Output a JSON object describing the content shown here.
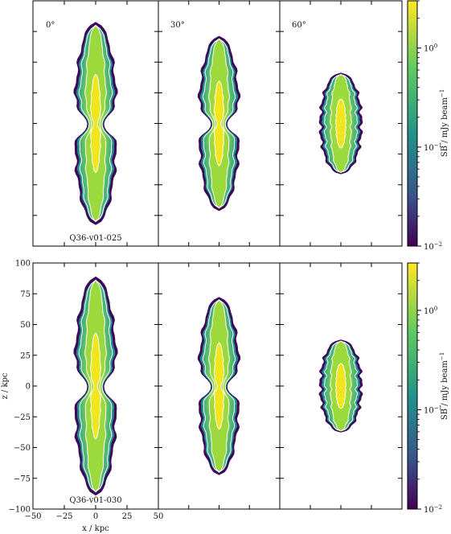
{
  "figure": {
    "colorbar_label": "SB / mJy beam",
    "colorbar_label_sup": "−1",
    "colorbar_ticks": [
      {
        "base": "10",
        "exp": "0"
      },
      {
        "base": "10",
        "exp": "−1"
      },
      {
        "base": "10",
        "exp": "−2"
      }
    ],
    "colormap": [
      "#440154",
      "#3b528b",
      "#21918c",
      "#5ec962",
      "#fde725"
    ],
    "contour_color": "#ffffff",
    "outline_color": "#3d0a57"
  },
  "chart_data": [
    {
      "type": "heatmap",
      "model": "Q36-v01-025",
      "panels": [
        {
          "angle": "0°",
          "length_kpc": 160,
          "halfwidth_kpc": 15,
          "waist": true
        },
        {
          "angle": "30°",
          "length_kpc": 138,
          "halfwidth_kpc": 15,
          "waist": true
        },
        {
          "angle": "60°",
          "length_kpc": 80,
          "halfwidth_kpc": 15,
          "waist": false
        }
      ],
      "colorbar": {
        "scale": "log",
        "range": [
          0.01,
          3
        ],
        "label": "SB / mJy beam−1"
      }
    },
    {
      "type": "heatmap",
      "model": "Q36-v01-030",
      "panels": [
        {
          "angle": "",
          "length_kpc": 172,
          "halfwidth_kpc": 15,
          "waist": true
        },
        {
          "angle": "",
          "length_kpc": 140,
          "halfwidth_kpc": 15,
          "waist": true
        },
        {
          "angle": "",
          "length_kpc": 73,
          "halfwidth_kpc": 15,
          "waist": false
        }
      ],
      "xlabel": "x / kpc",
      "ylabel": "z / kpc",
      "xlim": [
        -50,
        50
      ],
      "ylim": [
        -100,
        100
      ],
      "xticks": [
        "−50",
        "−25",
        "0",
        "25",
        "50"
      ],
      "yticks": [
        "100",
        "75",
        "50",
        "25",
        "0",
        "−25",
        "−50",
        "−75",
        "−100"
      ],
      "colorbar": {
        "scale": "log",
        "range": [
          0.01,
          3
        ],
        "label": "SB / mJy beam−1"
      }
    }
  ]
}
